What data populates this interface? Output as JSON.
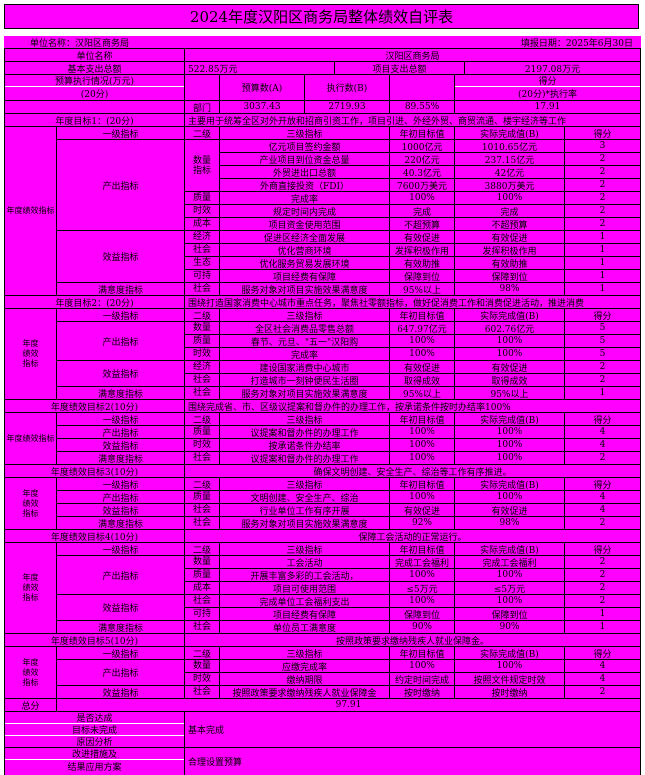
{
  "page": {
    "title": "2024年度汉阳区商务局整体绩效自评表",
    "bg_color": "#FF00FF",
    "text_color": "#000000"
  },
  "meta": {
    "unit_label": "单位名称：汉阳区商务局",
    "date_label": "填报日期：2025年6月30日"
  },
  "summary": {
    "unit_name_label": "单位名称",
    "unit_name_value": "汉阳区商务局",
    "basic_expense_label": "基本支出总额",
    "basic_expense_value": "522.85万元",
    "project_expense_label": "项目支出总额",
    "project_expense_value": "2197.08万元",
    "budget_label_line1": "预算执行情况(万元)",
    "budget_label_line2": "(20分)",
    "budget_col_a": "预算数(A)",
    "budget_col_b": "执行数(B)",
    "score_label_line1": "得分",
    "score_label_line2": "(20分)*执行率",
    "dept_label": "部门",
    "budget_a_value": "3037.43",
    "budget_b_value": "2719.93",
    "execution_rate": "89.55%",
    "budget_score": "17.91"
  },
  "columns": {
    "lv1": "一级指标",
    "lv2": "二级",
    "lv3": "三级指标",
    "target": "年初目标值",
    "actual": "实际完成值(B)",
    "score": "得分"
  },
  "sections": [
    {
      "title": "年度目标1：(20分)",
      "desc": "主要用于统筹全区对外开放和招商引资工作，项目引进、外经外贸、商贸流通、楼宇经济等工作",
      "desc_align": "left",
      "side": "年度绩效指标",
      "groups": [
        {
          "label": "产出指标",
          "subs": [
            {
              "label": "数量\n指标",
              "rows": [
                [
                  "亿元项目签约金额",
                  "1000亿元",
                  "1010.65亿元",
                  "3"
                ],
                [
                  "产业项目到位资金总量",
                  "220亿元",
                  "237.15亿元",
                  "2"
                ],
                [
                  "外贸进出口总额",
                  "40.3亿元",
                  "42亿元",
                  "2"
                ],
                [
                  "外商直接投资（FDI）",
                  "7600万美元",
                  "3880万美元",
                  "2"
                ]
              ]
            },
            {
              "label": "质量",
              "rows": [
                [
                  "完成率",
                  "100%",
                  "100%",
                  "2"
                ]
              ]
            },
            {
              "label": "时效",
              "rows": [
                [
                  "规定时间内完成",
                  "完成",
                  "完成",
                  "2"
                ]
              ]
            },
            {
              "label": "成本",
              "rows": [
                [
                  "项目资金使用范围",
                  "不超预算",
                  "不超预算",
                  "2"
                ]
              ]
            }
          ]
        },
        {
          "label": "效益指标",
          "subs": [
            {
              "label": "经济",
              "rows": [
                [
                  "促进区经济全面发展",
                  "有效促进",
                  "有效促进",
                  "1"
                ]
              ]
            },
            {
              "label": "社会",
              "rows": [
                [
                  "优化营商环境",
                  "发挥积极作用",
                  "发挥积极作用",
                  "1"
                ]
              ]
            },
            {
              "label": "生态",
              "rows": [
                [
                  "优化服务贸易发展环境",
                  "有效助推",
                  "有效助推",
                  "1"
                ]
              ]
            },
            {
              "label": "可持",
              "rows": [
                [
                  "项目经费有保障",
                  "保障到位",
                  "保障到位",
                  "1"
                ]
              ]
            }
          ]
        },
        {
          "label": "满意度指标",
          "subs": [
            {
              "label": "社会",
              "rows": [
                [
                  "服务对象对项目实施效果满意度",
                  "95%以上",
                  "98%",
                  "1"
                ]
              ]
            }
          ]
        }
      ]
    },
    {
      "title": "年度目标2：(20分)",
      "desc": "围绕打造国家消费中心城市重点任务，聚焦社零额指标，做好促消费工作和消费促进活动，推进消费",
      "desc_align": "left",
      "side": "年度\n绩效\n指标",
      "groups": [
        {
          "label": "产出指标",
          "subs": [
            {
              "label": "数量",
              "rows": [
                [
                  "全区社会消费品零售总额",
                  "647.97亿元",
                  "602.76亿元",
                  "5"
                ]
              ]
            },
            {
              "label": "质量",
              "rows": [
                [
                  "春节、元旦、\"五一\"汉阳购",
                  "100%",
                  "100%",
                  "5"
                ]
              ]
            },
            {
              "label": "时效",
              "rows": [
                [
                  "完成率",
                  "100%",
                  "100%",
                  "5"
                ]
              ]
            }
          ]
        },
        {
          "label": "效益指标",
          "subs": [
            {
              "label": "经济",
              "rows": [
                [
                  "建设国家消费中心城市",
                  "有效促进",
                  "有效促进",
                  "2"
                ]
              ]
            },
            {
              "label": "社会",
              "rows": [
                [
                  "打造城市一刻钟便民生活圈",
                  "取得成效",
                  "取得成效",
                  "2"
                ]
              ]
            }
          ]
        },
        {
          "label": "满意度指标",
          "subs": [
            {
              "label": "社会",
              "rows": [
                [
                  "服务对象对项目实施效果满意度",
                  "95%以上",
                  "95%以上",
                  "1"
                ]
              ]
            }
          ]
        }
      ]
    },
    {
      "title": "年度绩效目标2(10分)",
      "desc": "围绕完成省、市、区级议提案和督办件的办理工作，按承诺条件按时办结率100%",
      "desc_align": "left",
      "side": "年度绩效指标",
      "groups": [
        {
          "label": "产出指标",
          "subs": [
            {
              "label": "质量",
              "rows": [
                [
                  "议提案和督办件的办理工作",
                  "100%",
                  "100%",
                  "4"
                ]
              ]
            }
          ]
        },
        {
          "label": "效益指标",
          "subs": [
            {
              "label": "时效",
              "rows": [
                [
                  "按承诺条件办结率",
                  "100%",
                  "100%",
                  "4"
                ]
              ]
            }
          ]
        },
        {
          "label": "满意度指标",
          "subs": [
            {
              "label": "社会",
              "rows": [
                [
                  "议提案和督办件的办理工作",
                  "100%",
                  "100%",
                  "2"
                ]
              ]
            }
          ]
        }
      ]
    },
    {
      "title": "年度绩效目标3(10分)",
      "desc": "确保文明创建、安全生产、综治等工作有序推进。",
      "desc_align": "center",
      "side": "年度\n绩效\n指标",
      "groups": [
        {
          "label": "产出指标",
          "subs": [
            {
              "label": "质量",
              "rows": [
                [
                  "文明创建、安全生产、综治",
                  "100%",
                  "100%",
                  "4"
                ]
              ]
            }
          ]
        },
        {
          "label": "效益指标",
          "subs": [
            {
              "label": "社会",
              "rows": [
                [
                  "行业单位工作有序开展",
                  "有效促进",
                  "有效促进",
                  "4"
                ]
              ]
            }
          ]
        },
        {
          "label": "满意度指标",
          "subs": [
            {
              "label": "社会",
              "rows": [
                [
                  "服务对象对项目实施效果满意度",
                  "92%",
                  "98%",
                  "2"
                ]
              ]
            }
          ]
        }
      ]
    },
    {
      "title": "年度绩效目标4(10分)",
      "desc": "保障工会活动的正常运行。",
      "desc_align": "center",
      "side": "年度\n绩效\n指标",
      "groups": [
        {
          "label": "产出指标",
          "subs": [
            {
              "label": "数量",
              "rows": [
                [
                  "工会活动",
                  "完成工会福利",
                  "完成工会福利",
                  "2"
                ]
              ]
            },
            {
              "label": "质量",
              "rows": [
                [
                  "开展丰富多彩的工会活动，",
                  "100%",
                  "100%",
                  "2"
                ]
              ]
            },
            {
              "label": "成本",
              "rows": [
                [
                  "项目可使用范围",
                  "≤5万元",
                  "≤5万元",
                  "2"
                ]
              ]
            }
          ]
        },
        {
          "label": "效益指标",
          "subs": [
            {
              "label": "社会",
              "rows": [
                [
                  "完成单位工会福利支出",
                  "100%",
                  "100%",
                  "2"
                ]
              ]
            },
            {
              "label": "可持",
              "rows": [
                [
                  "项目经费有保障",
                  "保障到位",
                  "保障到位",
                  "1"
                ]
              ]
            }
          ]
        },
        {
          "label": "满意度指标",
          "subs": [
            {
              "label": "社会",
              "rows": [
                [
                  "单位员工满意度",
                  "90%",
                  "90%",
                  "1"
                ]
              ]
            }
          ]
        }
      ]
    },
    {
      "title": "年度绩效目标5(10分)",
      "desc": "按照政策要求缴纳残疾人就业保障金。",
      "desc_align": "center",
      "side": "年度\n绩效\n指标",
      "groups": [
        {
          "label": "产出指标",
          "subs": [
            {
              "label": "数量",
              "rows": [
                [
                  "应缴完成率",
                  "100%",
                  "100%",
                  "4"
                ]
              ]
            },
            {
              "label": "时效",
              "rows": [
                [
                  "缴纳期限",
                  "约定时间完成",
                  "按照文件规定时效",
                  "4"
                ]
              ]
            }
          ]
        },
        {
          "label": "效益指标",
          "subs": [
            {
              "label": "社会",
              "rows": [
                [
                  "按照政策要求缴纳残疾人就业保障金",
                  "按时缴纳",
                  "按时缴纳",
                  "2"
                ]
              ]
            }
          ]
        }
      ]
    }
  ],
  "total": {
    "label": "总分",
    "value": "97.91"
  },
  "footer": {
    "result_label_lines": [
      "是否达成",
      "目标未完成",
      "原因分析"
    ],
    "result_value": "基本完成",
    "improve_label_lines": [
      "改进措施及",
      "结果应用方案"
    ],
    "improve_value": "合理设置预算"
  }
}
